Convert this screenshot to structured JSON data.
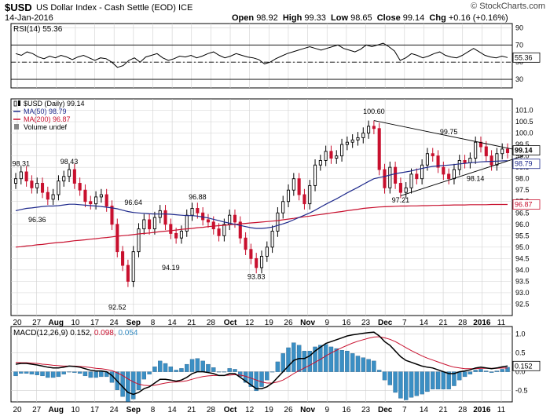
{
  "header": {
    "symbol": "$USD",
    "name": "US Dollar Index - Cash Settle (EOD)",
    "exchange": "ICE",
    "date": "14-Jan-2016",
    "brand": "© StockCharts.com",
    "open_label": "Open",
    "open": "98.92",
    "high_label": "High",
    "high": "99.33",
    "low_label": "Low",
    "low": "98.65",
    "close_label": "Close",
    "close": "99.14",
    "chg_label": "Chg",
    "chg": "+0.16 (+0.16%)"
  },
  "chart_data": [
    {
      "type": "line",
      "panel": "rsi",
      "label": "RSI(14) 55.36",
      "last_value_label": "55.36",
      "ylim": [
        20,
        95
      ],
      "ticks": [
        30,
        50,
        70,
        90
      ],
      "reference_lines": [
        30,
        50,
        70
      ],
      "values": [
        60,
        58,
        62,
        60,
        56,
        54,
        57,
        55,
        58,
        56,
        53,
        56,
        58,
        55,
        52,
        55,
        54,
        50,
        44,
        46,
        52,
        55,
        50,
        56,
        58,
        60,
        55,
        52,
        54,
        57,
        56,
        58,
        55,
        57,
        60,
        62,
        58,
        55,
        57,
        60,
        58,
        56,
        55,
        53,
        48,
        50,
        54,
        57,
        60,
        62,
        64,
        66,
        68,
        66,
        64,
        66,
        68,
        70,
        66,
        64,
        62,
        65,
        70,
        68,
        70,
        72,
        68,
        63,
        52,
        55,
        60,
        58,
        55,
        57,
        60,
        62,
        58,
        56,
        55,
        58,
        62,
        66,
        62,
        58,
        56,
        55,
        57,
        55.36
      ],
      "color": "#000000"
    },
    {
      "type": "candlestick",
      "panel": "price",
      "legend": [
        {
          "label": "$USD (Daily) 99.14",
          "color": "#000000",
          "icon": "candle-icon"
        },
        {
          "label": "MA(50) 98.79",
          "color": "#1f2a8c"
        },
        {
          "label": "MA(200) 96.87",
          "color": "#c8102e"
        },
        {
          "label": "Volume undef",
          "color": "#000000"
        }
      ],
      "ylim": [
        92.0,
        101.5
      ],
      "ticks": [
        92.5,
        93.0,
        93.5,
        94.0,
        94.5,
        95.0,
        95.5,
        96.0,
        96.5,
        97.0,
        97.5,
        98.0,
        98.5,
        99.0,
        99.5,
        100.0,
        100.5,
        101.0
      ],
      "last_labels": [
        "99.14",
        "98.79",
        "96.87"
      ],
      "annotations": [
        "98.31",
        "98.43",
        "96.36",
        "96.64",
        "96.88",
        "94.19",
        "93.83",
        "92.52",
        "100.60",
        "99.75",
        "97.21",
        "98.14"
      ],
      "closes": [
        98.0,
        98.3,
        97.9,
        97.6,
        97.8,
        97.4,
        97.1,
        97.3,
        97.9,
        98.1,
        98.4,
        97.8,
        97.5,
        97.0,
        96.9,
        97.2,
        97.3,
        96.8,
        96.0,
        94.8,
        94.2,
        93.5,
        94.8,
        95.8,
        96.2,
        95.8,
        96.3,
        96.6,
        96.0,
        95.6,
        95.4,
        95.7,
        96.4,
        96.7,
        96.5,
        96.2,
        96.1,
        95.8,
        95.5,
        96.0,
        96.4,
        96.1,
        95.4,
        94.9,
        94.5,
        94.1,
        94.6,
        95.0,
        95.7,
        96.5,
        97.0,
        97.5,
        98.0,
        97.3,
        96.9,
        97.7,
        98.6,
        98.8,
        99.2,
        98.9,
        99.0,
        99.5,
        99.6,
        99.7,
        99.8,
        100.0,
        100.3,
        100.2,
        98.4,
        97.6,
        98.5,
        97.8,
        97.4,
        97.6,
        98.2,
        98.0,
        98.6,
        99.1,
        99.0,
        98.5,
        98.2,
        98.0,
        98.4,
        98.8,
        98.7,
        98.9,
        99.6,
        99.4,
        99.0,
        98.6,
        99.1,
        99.3,
        99.14
      ],
      "ma50": [
        96.6,
        96.65,
        96.7,
        96.72,
        96.75,
        96.78,
        96.8,
        96.8,
        96.82,
        96.85,
        96.88,
        96.88,
        96.86,
        96.84,
        96.82,
        96.8,
        96.78,
        96.75,
        96.72,
        96.68,
        96.62,
        96.56,
        96.52,
        96.5,
        96.48,
        96.46,
        96.45,
        96.45,
        96.45,
        96.44,
        96.42,
        96.4,
        96.38,
        96.38,
        96.36,
        96.32,
        96.28,
        96.22,
        96.16,
        96.1,
        96.05,
        96.0,
        95.95,
        95.9,
        95.85,
        95.82,
        95.82,
        95.84,
        95.88,
        95.95,
        96.02,
        96.1,
        96.2,
        96.3,
        96.4,
        96.5,
        96.62,
        96.75,
        96.88,
        97.0,
        97.12,
        97.25,
        97.38,
        97.5,
        97.62,
        97.75,
        97.88,
        98.0,
        98.05,
        98.1,
        98.16,
        98.22,
        98.26,
        98.3,
        98.34,
        98.4,
        98.45,
        98.5,
        98.54,
        98.56,
        98.58,
        98.6,
        98.62,
        98.65,
        98.67,
        98.7,
        98.72,
        98.74,
        98.75,
        98.76,
        98.77,
        98.78,
        98.79
      ],
      "ma200": [
        95.0,
        95.02,
        95.05,
        95.07,
        95.1,
        95.12,
        95.15,
        95.18,
        95.2,
        95.22,
        95.25,
        95.28,
        95.3,
        95.32,
        95.35,
        95.37,
        95.4,
        95.42,
        95.45,
        95.48,
        95.5,
        95.52,
        95.55,
        95.58,
        95.6,
        95.62,
        95.65,
        95.68,
        95.7,
        95.72,
        95.75,
        95.78,
        95.8,
        95.82,
        95.85,
        95.87,
        95.9,
        95.92,
        95.94,
        95.96,
        95.98,
        96.0,
        96.02,
        96.04,
        96.06,
        96.08,
        96.1,
        96.12,
        96.14,
        96.16,
        96.2,
        96.23,
        96.26,
        96.3,
        96.33,
        96.36,
        96.4,
        96.43,
        96.46,
        96.5,
        96.53,
        96.56,
        96.6,
        96.63,
        96.66,
        96.7,
        96.72,
        96.74,
        96.76,
        96.77,
        96.78,
        96.79,
        96.8,
        96.8,
        96.81,
        96.81,
        96.82,
        96.82,
        96.83,
        96.83,
        96.84,
        96.84,
        96.85,
        96.85,
        96.85,
        96.86,
        96.86,
        96.86,
        96.86,
        96.87,
        96.87,
        96.87,
        96.87
      ]
    },
    {
      "type": "line",
      "panel": "macd",
      "label_prefix": "MACD(12,26,9)",
      "label_macd": "0.152",
      "label_signal": "0.098",
      "label_hist": "0.054",
      "last_value_label": "0.152",
      "ylim": [
        -0.8,
        1.2
      ],
      "ticks": [
        -0.5,
        0.0,
        0.5,
        1.0
      ],
      "series": [
        {
          "name": "MACD",
          "color": "#000000",
          "values": [
            0.2,
            0.22,
            0.22,
            0.2,
            0.18,
            0.15,
            0.12,
            0.1,
            0.1,
            0.12,
            0.15,
            0.14,
            0.12,
            0.08,
            0.04,
            0.02,
            0.02,
            0.0,
            -0.1,
            -0.25,
            -0.4,
            -0.55,
            -0.6,
            -0.55,
            -0.45,
            -0.4,
            -0.3,
            -0.2,
            -0.2,
            -0.22,
            -0.25,
            -0.22,
            -0.15,
            -0.05,
            0.0,
            0.0,
            -0.02,
            -0.05,
            -0.1,
            -0.1,
            -0.05,
            -0.05,
            -0.15,
            -0.25,
            -0.35,
            -0.45,
            -0.45,
            -0.4,
            -0.3,
            -0.15,
            0.0,
            0.15,
            0.3,
            0.35,
            0.35,
            0.42,
            0.55,
            0.65,
            0.75,
            0.8,
            0.85,
            0.9,
            0.95,
            0.98,
            1.0,
            1.02,
            1.04,
            1.05,
            0.95,
            0.8,
            0.7,
            0.55,
            0.4,
            0.3,
            0.25,
            0.2,
            0.15,
            0.12,
            0.1,
            0.05,
            0.0,
            -0.05,
            -0.05,
            0.0,
            0.02,
            0.05,
            0.1,
            0.12,
            0.1,
            0.08,
            0.1,
            0.13,
            0.152
          ]
        },
        {
          "name": "Signal",
          "color": "#c8102e",
          "values": [
            0.25,
            0.24,
            0.24,
            0.23,
            0.22,
            0.2,
            0.19,
            0.17,
            0.16,
            0.15,
            0.15,
            0.15,
            0.14,
            0.13,
            0.11,
            0.09,
            0.08,
            0.06,
            0.03,
            -0.03,
            -0.1,
            -0.19,
            -0.27,
            -0.33,
            -0.36,
            -0.37,
            -0.36,
            -0.33,
            -0.3,
            -0.28,
            -0.27,
            -0.26,
            -0.24,
            -0.2,
            -0.16,
            -0.13,
            -0.11,
            -0.1,
            -0.1,
            -0.1,
            -0.09,
            -0.08,
            -0.09,
            -0.12,
            -0.17,
            -0.22,
            -0.27,
            -0.3,
            -0.3,
            -0.27,
            -0.22,
            -0.14,
            -0.05,
            0.03,
            0.1,
            0.17,
            0.25,
            0.33,
            0.42,
            0.5,
            0.57,
            0.64,
            0.7,
            0.76,
            0.81,
            0.85,
            0.89,
            0.92,
            0.93,
            0.9,
            0.86,
            0.8,
            0.72,
            0.64,
            0.56,
            0.49,
            0.42,
            0.36,
            0.31,
            0.26,
            0.21,
            0.16,
            0.12,
            0.1,
            0.08,
            0.08,
            0.08,
            0.09,
            0.09,
            0.09,
            0.09,
            0.1,
            0.098
          ]
        }
      ],
      "histogram_color": "#3b8fc4"
    }
  ],
  "x_axis_labels": [
    "20",
    "27",
    "Aug",
    "10",
    "17",
    "24",
    "Sep",
    "8",
    "14",
    "21",
    "28",
    "Oct",
    "12",
    "19",
    "26",
    "Nov",
    "9",
    "16",
    "23",
    "Dec",
    "7",
    "14",
    "21",
    "28",
    "2016",
    "11"
  ],
  "x_axis_bold": [
    "Aug",
    "Sep",
    "Oct",
    "Nov",
    "Dec",
    "2016"
  ],
  "colors": {
    "up": "#000000",
    "down": "#c8102e",
    "grid": "#d0d0d0",
    "trendline": "#000000"
  }
}
